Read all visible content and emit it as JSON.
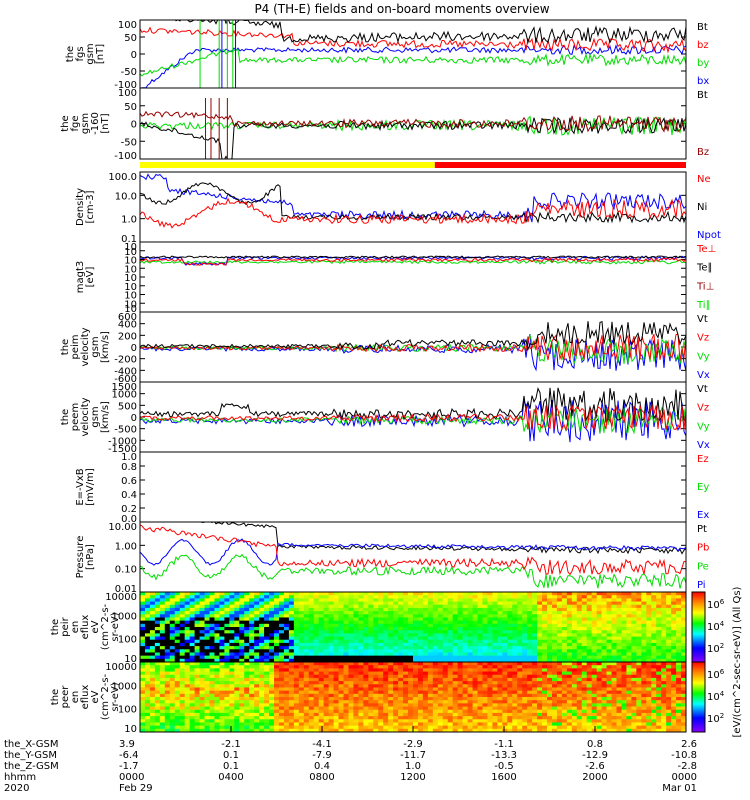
{
  "title": "P4 (TH-E) fields and on-board moments overview",
  "colors": {
    "black": "#000000",
    "red": "#ff0000",
    "green": "#00dd00",
    "blue": "#0000ff",
    "yellow": "#ffff00",
    "darkred": "#990000"
  },
  "mode_bar": {
    "name": "mode-bar",
    "segments": [
      {
        "color": "yellow",
        "fraction": 0.54
      },
      {
        "color": "red",
        "fraction": 0.46
      }
    ]
  },
  "chart_data": [
    {
      "id": "fgs_gsm",
      "type": "line",
      "ylabel": [
        "the",
        "fgs",
        "gsm",
        "[nT]"
      ],
      "yticks": [
        "100",
        "50",
        "0",
        "-50",
        "-100"
      ],
      "ylim": [
        -100,
        100
      ],
      "legend": [
        {
          "label": "Bt",
          "color": "black"
        },
        {
          "label": "bz",
          "color": "red"
        },
        {
          "label": "by",
          "color": "green"
        },
        {
          "label": "bx",
          "color": "blue"
        }
      ]
    },
    {
      "id": "fge_gsm",
      "type": "line",
      "ylabel": [
        "the",
        "fge",
        "gsm",
        "-160",
        "[nT]"
      ],
      "yticks": [
        "100",
        "50",
        "0",
        "-50",
        "-100"
      ],
      "ylim": [
        -120,
        100
      ],
      "legend": [
        {
          "label": "Bt",
          "color": "black"
        },
        {
          "label": "Bz",
          "color": "darkred"
        }
      ]
    },
    {
      "id": "density",
      "type": "line",
      "ylabel": [
        "Density",
        "[cm-3]"
      ],
      "yticks": [
        "100.0",
        "10.0",
        "1.0",
        "0.1"
      ],
      "yscale": "log",
      "legend": [
        {
          "label": "Ne",
          "color": "red"
        },
        {
          "label": "Ni",
          "color": "black"
        },
        {
          "label": "Npot",
          "color": "blue"
        }
      ]
    },
    {
      "id": "temperature",
      "type": "line",
      "ylabel": [
        "magt3",
        "[eV]"
      ],
      "yticks": [
        "10",
        "10",
        "10",
        "10",
        "10",
        "10",
        "10",
        "10",
        "10"
      ],
      "yscale": "log",
      "legend": [
        {
          "label": "Te⊥",
          "color": "red"
        },
        {
          "label": "Te∥",
          "color": "black"
        },
        {
          "label": "Ti⊥",
          "color": "darkred"
        },
        {
          "label": "Ti∥",
          "color": "green"
        }
      ]
    },
    {
      "id": "peim_velocity",
      "type": "line",
      "ylabel": [
        "the",
        "peim",
        "velocity",
        "gsm",
        "[km/s]"
      ],
      "yticks": [
        "600",
        "400",
        "200",
        "0",
        "-200",
        "-400",
        "-600"
      ],
      "ylim": [
        -600,
        600
      ],
      "legend": [
        {
          "label": "Vt",
          "color": "black"
        },
        {
          "label": "Vz",
          "color": "red"
        },
        {
          "label": "Vy",
          "color": "green"
        },
        {
          "label": "Vx",
          "color": "blue"
        }
      ]
    },
    {
      "id": "peem_velocity",
      "type": "line",
      "ylabel": [
        "the",
        "peem",
        "velocity",
        "gsm",
        "[km/s]"
      ],
      "yticks": [
        "1500",
        "1000",
        "500",
        "0",
        "-500",
        "-1000",
        "-1500"
      ],
      "ylim": [
        -1500,
        1500
      ],
      "legend": [
        {
          "label": "Vt",
          "color": "black"
        },
        {
          "label": "Vz",
          "color": "red"
        },
        {
          "label": "Vy",
          "color": "green"
        },
        {
          "label": "Vx",
          "color": "blue"
        }
      ]
    },
    {
      "id": "efield",
      "type": "line",
      "ylabel": [
        "E=-VxB",
        "[mV/m]"
      ],
      "yticks": [
        "1.0",
        "0.8",
        "0.6",
        "0.4",
        "0.2",
        "0.0"
      ],
      "ylim": [
        0,
        1
      ],
      "legend": [
        {
          "label": "Ez",
          "color": "red"
        },
        {
          "label": "Ey",
          "color": "green"
        },
        {
          "label": "Ex",
          "color": "blue"
        }
      ]
    },
    {
      "id": "pressure",
      "type": "line",
      "ylabel": [
        "Pressure",
        "[nPa]"
      ],
      "yticks": [
        "10.00",
        "1.00",
        "0.10",
        "0.01"
      ],
      "yscale": "log",
      "legend": [
        {
          "label": "Pt",
          "color": "black"
        },
        {
          "label": "Pb",
          "color": "red"
        },
        {
          "label": "Pe",
          "color": "green"
        },
        {
          "label": "Pi",
          "color": "blue"
        }
      ]
    },
    {
      "id": "peir_eflux",
      "type": "heatmap",
      "ylabel": [
        "the",
        "peir",
        "en",
        "eflux",
        "eV",
        "(cm^2-s-",
        "sr-eV)"
      ],
      "yticks": [
        "10000",
        "1000",
        "100",
        "10"
      ],
      "yscale": "log"
    },
    {
      "id": "peer_eflux",
      "type": "heatmap",
      "ylabel": [
        "the",
        "peer",
        "en",
        "eflux",
        "eV",
        "(cm^2-s-",
        "sr-eV)"
      ],
      "yticks": [
        "10000",
        "1000",
        "100",
        "10"
      ],
      "yscale": "log"
    }
  ],
  "colorbar": {
    "ticks": [
      "10^6",
      "10^4",
      "10^2",
      "10^6",
      "10^4",
      "10^2"
    ],
    "label": "[eV/(cm^2-sec-sr-eV)] (All Qs)"
  },
  "x_axis": {
    "row_labels": [
      "the_X-GSM",
      "the_Y-GSM",
      "the_Z-GSM",
      "hhmm",
      "2020"
    ],
    "columns": [
      [
        "3.9",
        "-6.4",
        "-1.7",
        "0000",
        "Feb 29"
      ],
      [
        "-2.1",
        "0.1",
        "0.1",
        "0400",
        ""
      ],
      [
        "-4.1",
        "-7.9",
        "0.4",
        "0800",
        ""
      ],
      [
        "-2.9",
        "-11.7",
        "1.0",
        "1200",
        ""
      ],
      [
        "-1.1",
        "-13.3",
        "-0.5",
        "1600",
        ""
      ],
      [
        "0.8",
        "-12.9",
        "-2.6",
        "2000",
        ""
      ],
      [
        "2.6",
        "-10.8",
        "-2.8",
        "0000",
        "Mar 01"
      ]
    ]
  }
}
